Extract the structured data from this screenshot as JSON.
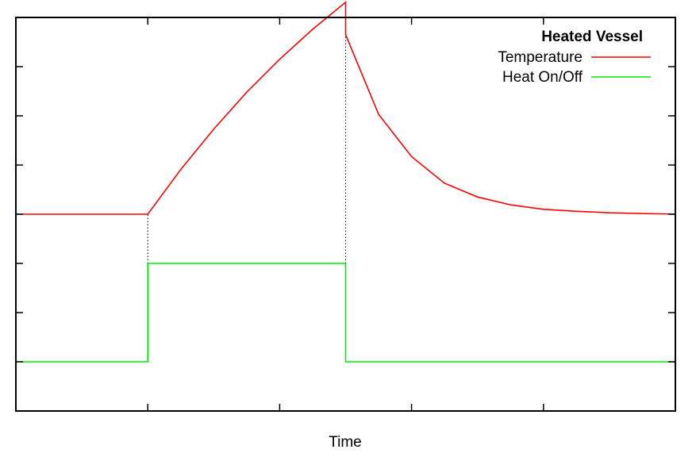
{
  "chart_data": {
    "type": "line",
    "title": "",
    "xlabel": "Time",
    "ylabel": "",
    "xlim": [
      0,
      10
    ],
    "ylim": [
      0,
      8
    ],
    "grid": false,
    "legend": {
      "title": "Heated Vessel",
      "placement": "top-right"
    },
    "x_ticks": [
      2,
      4,
      6,
      8
    ],
    "y_ticks": [
      1,
      2,
      3,
      4,
      5,
      6,
      7
    ],
    "series": [
      {
        "name": "Temperature",
        "color": "#ff0000",
        "points": [
          [
            0,
            4.0
          ],
          [
            2.0,
            4.0
          ],
          [
            2.5,
            4.91
          ],
          [
            3.0,
            5.73
          ],
          [
            3.5,
            6.48
          ],
          [
            4.0,
            7.15
          ],
          [
            4.5,
            7.76
          ],
          [
            5.0,
            8.31
          ],
          [
            5.0,
            7.65
          ],
          [
            5.5,
            6.03
          ],
          [
            6.0,
            5.17
          ],
          [
            6.5,
            4.63
          ],
          [
            7.0,
            4.35
          ],
          [
            7.5,
            4.19
          ],
          [
            8.0,
            4.1
          ],
          [
            8.5,
            4.06
          ],
          [
            9.0,
            4.03
          ],
          [
            10.0,
            4.0
          ]
        ]
      },
      {
        "name": "Heat On/Off",
        "color": "#00ee00",
        "points": [
          [
            0,
            1
          ],
          [
            2.0,
            1
          ],
          [
            2.0,
            3
          ],
          [
            5.0,
            3
          ],
          [
            5.0,
            1
          ],
          [
            10.0,
            1
          ]
        ]
      }
    ],
    "annotations": [
      {
        "type": "dotted-vertical",
        "x": 2.0,
        "y_from": 3,
        "y_to": 4.0
      },
      {
        "type": "dotted-vertical",
        "x": 5.0,
        "y_from": 3,
        "y_to": 7.65
      }
    ]
  }
}
